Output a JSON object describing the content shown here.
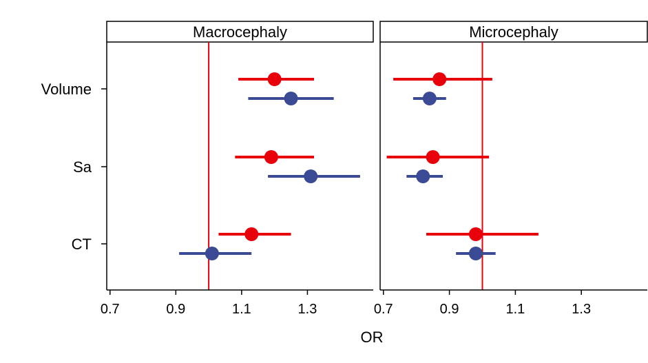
{
  "chart_data": {
    "type": "forest",
    "xlabel": "OR",
    "xticks": [
      "0.7",
      "0.9",
      "1.1",
      "1.3"
    ],
    "xlim": [
      0.69,
      1.5
    ],
    "reference_line": 1.0,
    "categories": [
      "Volume",
      "Sa",
      "CT"
    ],
    "colors": {
      "red": "#e8000b",
      "blue": "#3b4a94",
      "refline": "#e8000b"
    },
    "panels": [
      {
        "title": "Macrocephaly",
        "series": [
          {
            "color": "red",
            "points": [
              {
                "category": "Volume",
                "or": 1.2,
                "lo": 1.09,
                "hi": 1.32
              },
              {
                "category": "Sa",
                "or": 1.19,
                "lo": 1.08,
                "hi": 1.32
              },
              {
                "category": "CT",
                "or": 1.13,
                "lo": 1.03,
                "hi": 1.25
              }
            ]
          },
          {
            "color": "blue",
            "points": [
              {
                "category": "Volume",
                "or": 1.25,
                "lo": 1.12,
                "hi": 1.38
              },
              {
                "category": "Sa",
                "or": 1.31,
                "lo": 1.18,
                "hi": 1.46
              },
              {
                "category": "CT",
                "or": 1.01,
                "lo": 0.91,
                "hi": 1.13
              }
            ]
          }
        ]
      },
      {
        "title": "Microcephaly",
        "series": [
          {
            "color": "red",
            "points": [
              {
                "category": "Volume",
                "or": 0.87,
                "lo": 0.73,
                "hi": 1.03
              },
              {
                "category": "Sa",
                "or": 0.85,
                "lo": 0.71,
                "hi": 1.02
              },
              {
                "category": "CT",
                "or": 0.98,
                "lo": 0.83,
                "hi": 1.17
              }
            ]
          },
          {
            "color": "blue",
            "points": [
              {
                "category": "Volume",
                "or": 0.84,
                "lo": 0.79,
                "hi": 0.89
              },
              {
                "category": "Sa",
                "or": 0.82,
                "lo": 0.77,
                "hi": 0.88
              },
              {
                "category": "CT",
                "or": 0.98,
                "lo": 0.92,
                "hi": 1.04
              }
            ]
          }
        ]
      }
    ]
  }
}
